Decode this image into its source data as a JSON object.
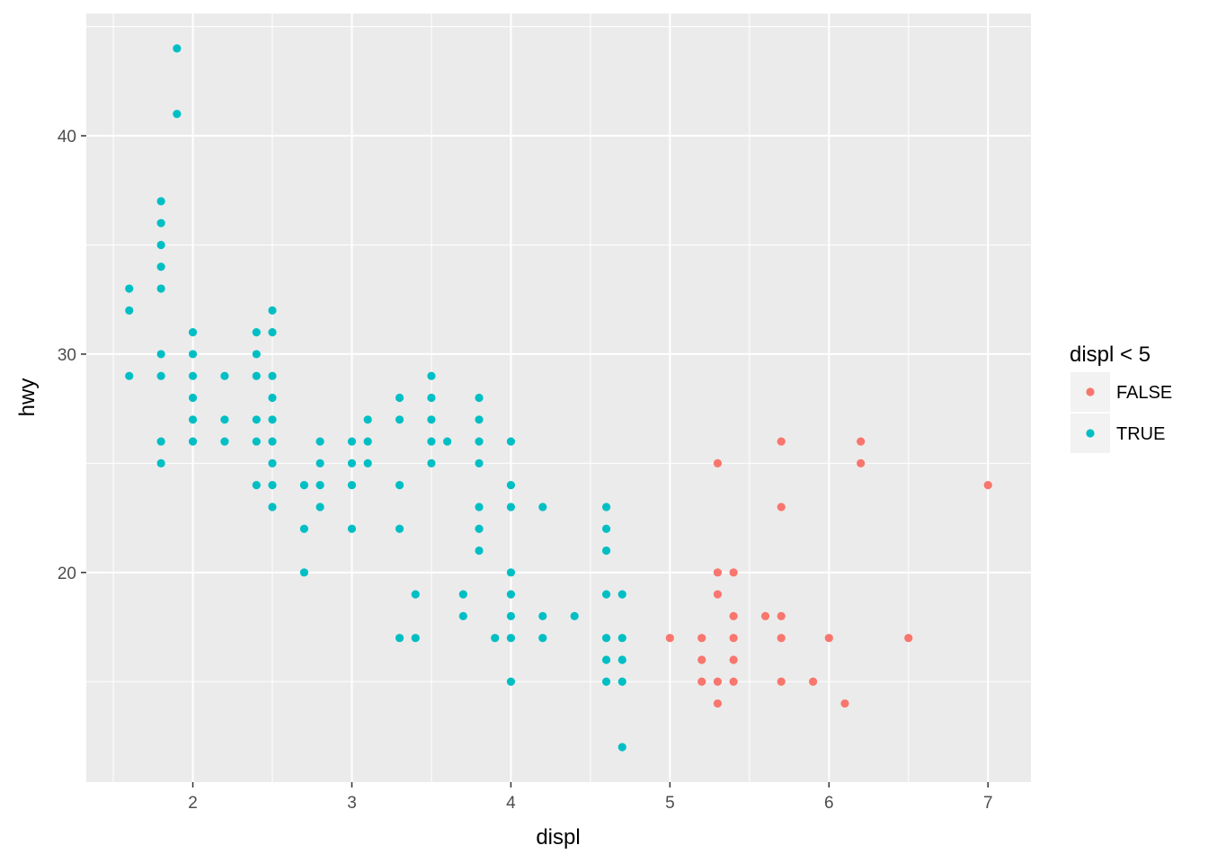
{
  "chart_data": {
    "type": "scatter",
    "xlabel": "displ",
    "ylabel": "hwy",
    "xlim": [
      1.33,
      7.27
    ],
    "ylim": [
      10.4,
      45.6
    ],
    "x_ticks": [
      2,
      3,
      4,
      5,
      6,
      7
    ],
    "y_ticks": [
      20,
      30,
      40
    ],
    "x_tick_labels": [
      "2",
      "3",
      "4",
      "5",
      "6",
      "7"
    ],
    "y_tick_labels": [
      "20",
      "30",
      "40"
    ],
    "grid": true,
    "legend": {
      "title": "displ < 5",
      "position": "right",
      "entries": [
        {
          "label": "FALSE",
          "color": "#F8766D"
        },
        {
          "label": "TRUE",
          "color": "#00BFC4"
        }
      ]
    },
    "series": [
      {
        "name": "FALSE",
        "color": "#F8766D",
        "points": [
          [
            5.0,
            17
          ],
          [
            5.2,
            17
          ],
          [
            5.2,
            16
          ],
          [
            5.2,
            15
          ],
          [
            5.3,
            25
          ],
          [
            5.3,
            20
          ],
          [
            5.3,
            19
          ],
          [
            5.3,
            15
          ],
          [
            5.3,
            14
          ],
          [
            5.4,
            20
          ],
          [
            5.4,
            18
          ],
          [
            5.4,
            17
          ],
          [
            5.4,
            16
          ],
          [
            5.4,
            15
          ],
          [
            5.6,
            18
          ],
          [
            5.7,
            26
          ],
          [
            5.7,
            23
          ],
          [
            5.7,
            18
          ],
          [
            5.7,
            17
          ],
          [
            5.7,
            15
          ],
          [
            5.9,
            15
          ],
          [
            6.0,
            17
          ],
          [
            6.1,
            14
          ],
          [
            6.2,
            26
          ],
          [
            6.2,
            25
          ],
          [
            6.5,
            17
          ],
          [
            7.0,
            24
          ]
        ]
      },
      {
        "name": "TRUE",
        "color": "#00BFC4",
        "points": [
          [
            1.6,
            33
          ],
          [
            1.6,
            32
          ],
          [
            1.6,
            29
          ],
          [
            1.8,
            37
          ],
          [
            1.8,
            36
          ],
          [
            1.8,
            35
          ],
          [
            1.8,
            34
          ],
          [
            1.8,
            33
          ],
          [
            1.8,
            30
          ],
          [
            1.8,
            29
          ],
          [
            1.8,
            26
          ],
          [
            1.8,
            25
          ],
          [
            1.9,
            44
          ],
          [
            1.9,
            41
          ],
          [
            2.0,
            31
          ],
          [
            2.0,
            30
          ],
          [
            2.0,
            29
          ],
          [
            2.0,
            28
          ],
          [
            2.0,
            27
          ],
          [
            2.0,
            26
          ],
          [
            2.2,
            29
          ],
          [
            2.2,
            27
          ],
          [
            2.2,
            26
          ],
          [
            2.4,
            31
          ],
          [
            2.4,
            30
          ],
          [
            2.4,
            29
          ],
          [
            2.4,
            27
          ],
          [
            2.4,
            26
          ],
          [
            2.4,
            24
          ],
          [
            2.5,
            32
          ],
          [
            2.5,
            31
          ],
          [
            2.5,
            29
          ],
          [
            2.5,
            28
          ],
          [
            2.5,
            27
          ],
          [
            2.5,
            26
          ],
          [
            2.5,
            25
          ],
          [
            2.5,
            24
          ],
          [
            2.5,
            23
          ],
          [
            2.7,
            24
          ],
          [
            2.7,
            22
          ],
          [
            2.7,
            20
          ],
          [
            2.8,
            26
          ],
          [
            2.8,
            25
          ],
          [
            2.8,
            24
          ],
          [
            2.8,
            23
          ],
          [
            3.0,
            26
          ],
          [
            3.0,
            25
          ],
          [
            3.0,
            24
          ],
          [
            3.0,
            22
          ],
          [
            3.1,
            27
          ],
          [
            3.1,
            26
          ],
          [
            3.1,
            25
          ],
          [
            3.3,
            28
          ],
          [
            3.3,
            27
          ],
          [
            3.3,
            24
          ],
          [
            3.3,
            22
          ],
          [
            3.3,
            17
          ],
          [
            3.4,
            19
          ],
          [
            3.4,
            17
          ],
          [
            3.5,
            29
          ],
          [
            3.5,
            28
          ],
          [
            3.5,
            27
          ],
          [
            3.5,
            26
          ],
          [
            3.5,
            25
          ],
          [
            3.6,
            26
          ],
          [
            3.7,
            19
          ],
          [
            3.7,
            18
          ],
          [
            3.8,
            28
          ],
          [
            3.8,
            27
          ],
          [
            3.8,
            26
          ],
          [
            3.8,
            25
          ],
          [
            3.8,
            23
          ],
          [
            3.8,
            22
          ],
          [
            3.8,
            21
          ],
          [
            3.9,
            17
          ],
          [
            4.0,
            26
          ],
          [
            4.0,
            24
          ],
          [
            4.0,
            23
          ],
          [
            4.0,
            20
          ],
          [
            4.0,
            19
          ],
          [
            4.0,
            18
          ],
          [
            4.0,
            17
          ],
          [
            4.0,
            15
          ],
          [
            4.2,
            23
          ],
          [
            4.2,
            18
          ],
          [
            4.2,
            17
          ],
          [
            4.4,
            18
          ],
          [
            4.6,
            23
          ],
          [
            4.6,
            22
          ],
          [
            4.6,
            21
          ],
          [
            4.6,
            19
          ],
          [
            4.6,
            17
          ],
          [
            4.6,
            16
          ],
          [
            4.6,
            15
          ],
          [
            4.7,
            19
          ],
          [
            4.7,
            17
          ],
          [
            4.7,
            16
          ],
          [
            4.7,
            15
          ],
          [
            4.7,
            12
          ]
        ]
      }
    ]
  }
}
